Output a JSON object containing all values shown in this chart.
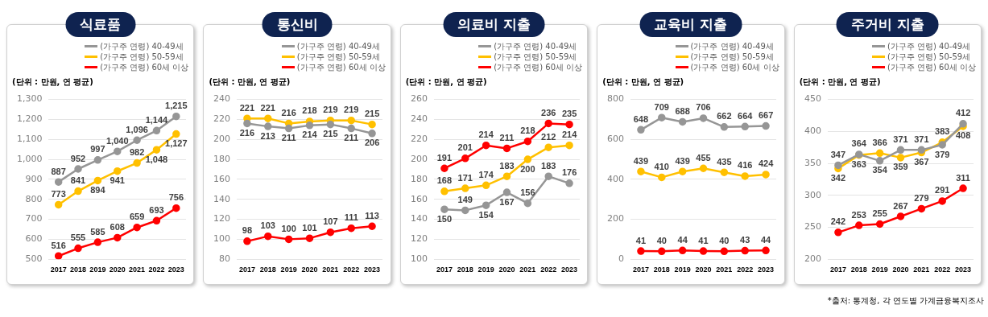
{
  "chart_data": [
    {
      "type": "line",
      "title": "식료품",
      "annotations": [
        "(단위 : 만원, 연 평균)"
      ],
      "categories": [
        "2017",
        "2018",
        "2019",
        "2020",
        "2021",
        "2022",
        "2023"
      ],
      "series": [
        {
          "name": "(가구주 연령) 40-49세",
          "color": "#969696",
          "values": [
            887,
            952,
            997,
            1040,
            1096,
            1144,
            1215
          ],
          "value_labels": [
            "887",
            "952",
            "997",
            "1,040",
            "1,096",
            "1,144",
            "1,215"
          ]
        },
        {
          "name": "(가구주 연령) 50-59세",
          "color": "#ffc000",
          "values": [
            773,
            841,
            894,
            941,
            982,
            1048,
            1127
          ],
          "value_labels": [
            "773",
            "841",
            "894",
            "941",
            "982",
            "1,048",
            "1,127"
          ]
        },
        {
          "name": "(가구주 연령) 60세 이상",
          "color": "#ff0000",
          "values": [
            516,
            555,
            585,
            608,
            659,
            693,
            756
          ],
          "value_labels": [
            "516",
            "555",
            "585",
            "608",
            "659",
            "693",
            "756"
          ]
        }
      ],
      "ylim": [
        500,
        1300
      ],
      "yticks": [
        500,
        600,
        700,
        800,
        900,
        {
          "value": 1000,
          "label": "1,000"
        },
        {
          "value": 1100,
          "label": "1,100"
        },
        {
          "value": 1200,
          "label": "1,200"
        },
        {
          "value": 1300,
          "label": "1,300"
        }
      ],
      "grid": "y",
      "legend": "top right",
      "marker": "circle",
      "line_style": "solid"
    },
    {
      "type": "line",
      "title": "통신비",
      "annotations": [
        "(단위 : 만원, 연 평균)"
      ],
      "categories": [
        "2017",
        "2018",
        "2019",
        "2020",
        "2021",
        "2022",
        "2023"
      ],
      "series": [
        {
          "name": "(가구주 연령) 40-49세",
          "color": "#969696",
          "values": [
            216,
            213,
            211,
            214,
            215,
            211,
            206
          ]
        },
        {
          "name": "(가구주 연령) 50-59세",
          "color": "#ffc000",
          "values": [
            221,
            221,
            216,
            218,
            219,
            219,
            215
          ]
        },
        {
          "name": "(가구주 연령) 60세 이상",
          "color": "#ff0000",
          "values": [
            98,
            103,
            100,
            101,
            107,
            111,
            113
          ]
        }
      ],
      "ylim": [
        80,
        240
      ],
      "yticks": [
        80,
        100,
        120,
        140,
        160,
        180,
        200,
        220,
        240
      ],
      "grid": "y",
      "legend": "top right",
      "marker": "circle",
      "line_style": "solid",
      "data_labels": true
    },
    {
      "type": "line",
      "title": "의료비 지출",
      "annotations": [
        "(단위 : 만원, 연 평균)"
      ],
      "categories": [
        "2017",
        "2018",
        "2019",
        "2020",
        "2021",
        "2022",
        "2023"
      ],
      "series": [
        {
          "name": "(가구주 연령) 40-49세",
          "color": "#969696",
          "values": [
            150,
            149,
            154,
            167,
            156,
            183,
            176
          ]
        },
        {
          "name": "(가구주 연령) 50-59세",
          "color": "#ffc000",
          "values": [
            168,
            171,
            174,
            183,
            200,
            212,
            214
          ]
        },
        {
          "name": "(가구주 연령) 60세 이상",
          "color": "#ff0000",
          "values": [
            191,
            201,
            214,
            211,
            218,
            236,
            235
          ]
        }
      ],
      "ylim": [
        100,
        260
      ],
      "yticks": [
        100,
        120,
        140,
        160,
        180,
        200,
        220,
        240,
        260
      ],
      "grid": "y",
      "legend": "top right",
      "marker": "circle",
      "line_style": "solid",
      "data_labels": true
    },
    {
      "type": "line",
      "title": "교육비 지출",
      "annotations": [
        "(단위 : 만원, 연 평균)"
      ],
      "categories": [
        "2017",
        "2018",
        "2019",
        "2020",
        "2021",
        "2022",
        "2023"
      ],
      "series": [
        {
          "name": "(가구주 연령) 40-49세",
          "color": "#969696",
          "values": [
            648,
            709,
            688,
            706,
            662,
            664,
            667
          ]
        },
        {
          "name": "(가구주 연령) 50-59세",
          "color": "#ffc000",
          "values": [
            439,
            410,
            439,
            455,
            435,
            416,
            424
          ]
        },
        {
          "name": "(가구주 연령) 60세 이상",
          "color": "#ff0000",
          "values": [
            41,
            40,
            44,
            41,
            40,
            43,
            44
          ]
        }
      ],
      "ylim": [
        0,
        800
      ],
      "yticks": [
        0,
        200,
        400,
        600,
        800
      ],
      "grid": "y",
      "legend": "top right",
      "marker": "circle",
      "line_style": "solid",
      "data_labels": true
    },
    {
      "type": "line",
      "title": "주거비 지출",
      "annotations": [
        "(단위 : 만원, 연 평균)",
        "*출처: 통계청, 각 연도별 가계금융복지조사"
      ],
      "categories": [
        "2017",
        "2018",
        "2019",
        "2020",
        "2021",
        "2022",
        "2023"
      ],
      "series": [
        {
          "name": "(가구주 연령) 40-49세",
          "color": "#969696",
          "values": [
            347,
            364,
            354,
            371,
            371,
            379,
            412
          ]
        },
        {
          "name": "(가구주 연령) 50-59세",
          "color": "#ffc000",
          "values": [
            342,
            363,
            366,
            359,
            367,
            383,
            408
          ]
        },
        {
          "name": "(가구주 연령) 60세 이상",
          "color": "#ff0000",
          "values": [
            242,
            253,
            255,
            267,
            279,
            291,
            311
          ]
        }
      ],
      "ylim": [
        200,
        450
      ],
      "yticks": [
        200,
        250,
        300,
        350,
        400,
        450
      ],
      "grid": "y",
      "legend": "top right",
      "marker": "circle",
      "line_style": "solid",
      "data_labels": true
    }
  ]
}
